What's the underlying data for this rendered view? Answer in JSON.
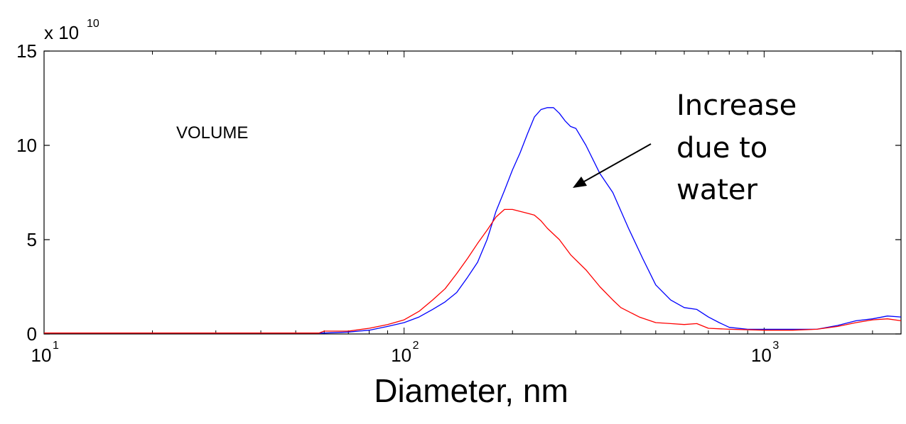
{
  "chart_data": {
    "type": "line",
    "title": "",
    "xlabel": "Diameter, nm",
    "ylabel": "",
    "x_scale": "log",
    "xlim": [
      10,
      2400
    ],
    "ylim": [
      0,
      15
    ],
    "y_multiplier": {
      "base": "x 10",
      "exponent": "10"
    },
    "grid": false,
    "x_ticks": [
      {
        "value": 10,
        "base": "10",
        "exp": "1"
      },
      {
        "value": 100,
        "base": "10",
        "exp": "2"
      },
      {
        "value": 1000,
        "base": "10",
        "exp": "3"
      }
    ],
    "y_ticks": [
      {
        "value": 0,
        "label": "0"
      },
      {
        "value": 5,
        "label": "5"
      },
      {
        "value": 10,
        "label": "10"
      },
      {
        "value": 15,
        "label": "15"
      }
    ],
    "series": [
      {
        "color": "#0000ff",
        "points": [
          [
            10,
            0.05
          ],
          [
            40,
            0.05
          ],
          [
            60,
            0.05
          ],
          [
            70,
            0.1
          ],
          [
            80,
            0.2
          ],
          [
            90,
            0.4
          ],
          [
            100,
            0.6
          ],
          [
            110,
            0.9
          ],
          [
            120,
            1.3
          ],
          [
            130,
            1.7
          ],
          [
            140,
            2.2
          ],
          [
            150,
            3.0
          ],
          [
            160,
            3.8
          ],
          [
            170,
            5.0
          ],
          [
            180,
            6.5
          ],
          [
            190,
            7.6
          ],
          [
            200,
            8.7
          ],
          [
            210,
            9.6
          ],
          [
            220,
            10.6
          ],
          [
            230,
            11.5
          ],
          [
            240,
            11.9
          ],
          [
            250,
            12.0
          ],
          [
            260,
            12.0
          ],
          [
            270,
            11.7
          ],
          [
            280,
            11.3
          ],
          [
            290,
            11.0
          ],
          [
            300,
            10.9
          ],
          [
            320,
            10.0
          ],
          [
            350,
            8.5
          ],
          [
            380,
            7.5
          ],
          [
            420,
            5.6
          ],
          [
            460,
            4.0
          ],
          [
            500,
            2.6
          ],
          [
            550,
            1.8
          ],
          [
            600,
            1.4
          ],
          [
            650,
            1.3
          ],
          [
            700,
            0.9
          ],
          [
            750,
            0.6
          ],
          [
            800,
            0.35
          ],
          [
            900,
            0.25
          ],
          [
            1000,
            0.25
          ],
          [
            1200,
            0.25
          ],
          [
            1400,
            0.25
          ],
          [
            1600,
            0.45
          ],
          [
            1800,
            0.7
          ],
          [
            2000,
            0.8
          ],
          [
            2200,
            0.95
          ],
          [
            2400,
            0.9
          ]
        ]
      },
      {
        "color": "#ff0000",
        "points": [
          [
            10,
            0.05
          ],
          [
            40,
            0.05
          ],
          [
            58,
            0.05
          ],
          [
            60,
            0.15
          ],
          [
            70,
            0.15
          ],
          [
            80,
            0.3
          ],
          [
            90,
            0.5
          ],
          [
            100,
            0.75
          ],
          [
            110,
            1.2
          ],
          [
            120,
            1.8
          ],
          [
            130,
            2.4
          ],
          [
            140,
            3.2
          ],
          [
            150,
            4.0
          ],
          [
            160,
            4.8
          ],
          [
            170,
            5.5
          ],
          [
            180,
            6.2
          ],
          [
            190,
            6.6
          ],
          [
            200,
            6.6
          ],
          [
            210,
            6.5
          ],
          [
            220,
            6.4
          ],
          [
            230,
            6.3
          ],
          [
            240,
            6.0
          ],
          [
            250,
            5.6
          ],
          [
            270,
            5.0
          ],
          [
            290,
            4.2
          ],
          [
            320,
            3.4
          ],
          [
            350,
            2.5
          ],
          [
            380,
            1.8
          ],
          [
            400,
            1.4
          ],
          [
            450,
            0.9
          ],
          [
            500,
            0.6
          ],
          [
            550,
            0.55
          ],
          [
            600,
            0.5
          ],
          [
            650,
            0.55
          ],
          [
            700,
            0.3
          ],
          [
            800,
            0.25
          ],
          [
            1000,
            0.2
          ],
          [
            1200,
            0.2
          ],
          [
            1400,
            0.25
          ],
          [
            1600,
            0.4
          ],
          [
            1800,
            0.6
          ],
          [
            2000,
            0.75
          ],
          [
            2200,
            0.8
          ],
          [
            2400,
            0.7
          ]
        ]
      }
    ],
    "annotations": [
      {
        "lines": [
          "Increase",
          "due to",
          "water"
        ]
      },
      {
        "lines": [
          "VOLUME"
        ]
      }
    ]
  }
}
